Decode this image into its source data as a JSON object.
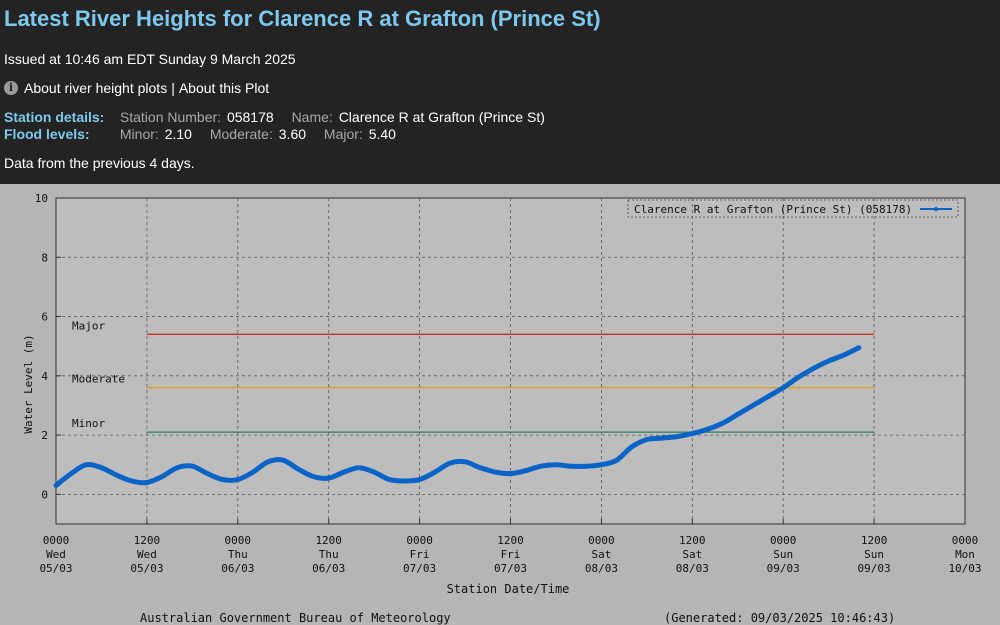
{
  "header": {
    "title": "Latest River Heights for Clarence R at Grafton (Prince St)",
    "issued": "Issued at 10:46 am EDT Sunday 9 March 2025",
    "link_about_plots": "About river height plots",
    "link_separator": "|",
    "link_about_this": "About this Plot"
  },
  "station": {
    "label": "Station details:",
    "number_label": "Station Number:",
    "number": "058178",
    "name_label": "Name:",
    "name": "Clarence R at Grafton (Prince St)"
  },
  "flood": {
    "label": "Flood levels:",
    "minor_label": "Minor:",
    "minor": "2.10",
    "moderate_label": "Moderate:",
    "moderate": "3.60",
    "major_label": "Major:",
    "major": "5.40"
  },
  "previous_note": "Data from the previous 4 days.",
  "footer": {
    "credit": "Australian Government Bureau of Meteorology",
    "generated": "(Generated: 09/03/2025 10:46:43)"
  },
  "colors": {
    "series": "#0a64c8",
    "major": "#cc2a2a",
    "moderate": "#d9a020",
    "minor": "#2e7d5a",
    "plot_bg": "#bdbdbd",
    "frame_bg": "#b5b5b5"
  },
  "chart_data": {
    "type": "line",
    "ylabel": "Water Level (m)",
    "xlabel": "Station Date/Time",
    "ylim": [
      -1,
      10
    ],
    "yticks": [
      0,
      2,
      4,
      6,
      8,
      10
    ],
    "grid": true,
    "legend_position": "top-right",
    "x_unit": "hours from 0000 Wed 05/03",
    "xlim": [
      0,
      120
    ],
    "xticks": [
      {
        "x": 0,
        "time": "0000",
        "day": "Wed",
        "date": "05/03"
      },
      {
        "x": 12,
        "time": "1200",
        "day": "Wed",
        "date": "05/03"
      },
      {
        "x": 24,
        "time": "0000",
        "day": "Thu",
        "date": "06/03"
      },
      {
        "x": 36,
        "time": "1200",
        "day": "Thu",
        "date": "06/03"
      },
      {
        "x": 48,
        "time": "0000",
        "day": "Fri",
        "date": "07/03"
      },
      {
        "x": 60,
        "time": "1200",
        "day": "Fri",
        "date": "07/03"
      },
      {
        "x": 72,
        "time": "0000",
        "day": "Sat",
        "date": "08/03"
      },
      {
        "x": 84,
        "time": "1200",
        "day": "Sat",
        "date": "08/03"
      },
      {
        "x": 96,
        "time": "0000",
        "day": "Sun",
        "date": "09/03"
      },
      {
        "x": 108,
        "time": "1200",
        "day": "Sun",
        "date": "09/03"
      },
      {
        "x": 120,
        "time": "0000",
        "day": "Mon",
        "date": "10/03"
      }
    ],
    "thresholds": [
      {
        "name": "Major",
        "value": 5.4,
        "x_start": 12,
        "x_end": 108
      },
      {
        "name": "Moderate",
        "value": 3.6,
        "x_start": 12,
        "x_end": 108
      },
      {
        "name": "Minor",
        "value": 2.1,
        "x_start": 12,
        "x_end": 108
      }
    ],
    "series": [
      {
        "name": "Clarence R at Grafton (Prince St) (058178)",
        "x": [
          0,
          2,
          4,
          6,
          8,
          10,
          12,
          14,
          16,
          18,
          20,
          22,
          24,
          26,
          28,
          30,
          32,
          34,
          36,
          38,
          40,
          42,
          44,
          46,
          48,
          50,
          52,
          54,
          56,
          58,
          60,
          62,
          64,
          66,
          68,
          70,
          72,
          74,
          76,
          78,
          80,
          82,
          84,
          86,
          88,
          90,
          92,
          94,
          96,
          98,
          100,
          102,
          104,
          106
        ],
        "y": [
          0.3,
          0.7,
          1.0,
          0.9,
          0.65,
          0.45,
          0.4,
          0.6,
          0.9,
          0.95,
          0.7,
          0.5,
          0.5,
          0.75,
          1.1,
          1.15,
          0.85,
          0.6,
          0.55,
          0.75,
          0.9,
          0.75,
          0.5,
          0.45,
          0.5,
          0.75,
          1.05,
          1.1,
          0.9,
          0.75,
          0.7,
          0.8,
          0.95,
          1.0,
          0.95,
          0.95,
          1.0,
          1.15,
          1.6,
          1.85,
          1.9,
          1.95,
          2.05,
          2.2,
          2.4,
          2.7,
          3.0,
          3.3,
          3.6,
          3.95,
          4.25,
          4.5,
          4.7,
          4.95
        ]
      }
    ]
  }
}
